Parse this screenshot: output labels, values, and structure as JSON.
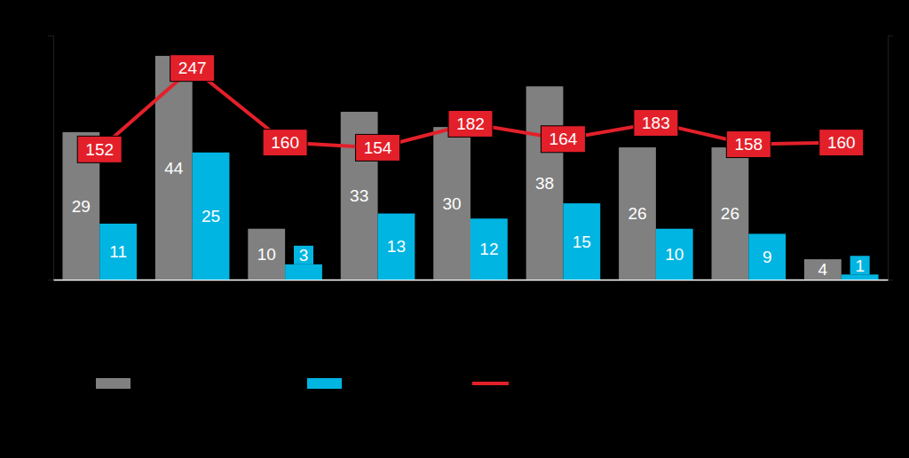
{
  "chart_data": {
    "type": "bar",
    "categories": [
      null,
      null,
      null,
      null,
      null,
      null,
      null,
      null,
      null
    ],
    "series": [
      {
        "type": "bar",
        "color": "#808080",
        "values": [
          29,
          44,
          10,
          33,
          30,
          38,
          26,
          26,
          4
        ]
      },
      {
        "type": "bar",
        "color": "#00b5e2",
        "values": [
          11,
          25,
          3,
          13,
          12,
          15,
          10,
          9,
          1
        ]
      },
      {
        "type": "line",
        "axis": "y2",
        "color": "#e3202a",
        "marker": "box",
        "values": [
          152,
          247,
          160,
          154,
          182,
          164,
          183,
          158,
          160
        ]
      }
    ],
    "ylim": [
      0,
      48
    ],
    "y2lim": [
      0,
      285
    ],
    "data_labels": true,
    "tick_labels": false,
    "legend": "bottom"
  }
}
